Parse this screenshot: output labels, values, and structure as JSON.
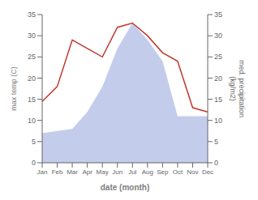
{
  "chart_data": {
    "type": "line",
    "categories": [
      "Jan",
      "Feb",
      "Mar",
      "Apr",
      "May",
      "Jun",
      "Jul",
      "Aug",
      "Sep",
      "Oct",
      "Nov",
      "Dec"
    ],
    "series": [
      {
        "type": "area",
        "axis": "y2",
        "color": "#b8c4e8",
        "values": [
          7,
          7.5,
          8,
          12,
          18,
          27,
          33,
          29,
          24,
          11,
          11,
          11
        ]
      },
      {
        "type": "line",
        "color": "#c0392b",
        "values": [
          14.5,
          18,
          29,
          27,
          25,
          32,
          33,
          30,
          26,
          24,
          13,
          12
        ]
      }
    ],
    "xlabel": "date (month)",
    "ylabel": "max temp (C)",
    "y2label": "med. precipitation\n(kg/m2)",
    "ylim": [
      0,
      35
    ],
    "yticks": [
      0,
      5,
      10,
      15,
      20,
      25,
      30,
      35
    ],
    "y2lim": [
      0,
      35
    ],
    "y2ticks": [
      0,
      5,
      10,
      15,
      20,
      25,
      30,
      35
    ]
  }
}
